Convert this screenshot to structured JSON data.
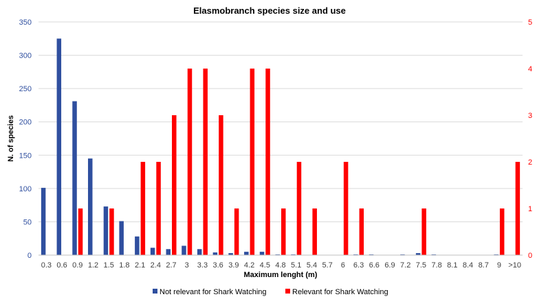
{
  "chart_data": {
    "type": "bar",
    "title": "Elasmobranch species size and use",
    "xlabel": "Maximum lenght (m)",
    "ylabel": "N. of species",
    "categories": [
      "0.3",
      "0.6",
      "0.9",
      "1.2",
      "1.5",
      "1.8",
      "2.1",
      "2.4",
      "2.7",
      "3",
      "3.3",
      "3.6",
      "3.9",
      "4.2",
      "4.5",
      "4.8",
      "5.1",
      "5.4",
      "5.7",
      "6",
      "6.3",
      "6.6",
      "6.9",
      "7.2",
      "7.5",
      "7.8",
      "8.1",
      "8.4",
      "8.7",
      "9",
      ">10"
    ],
    "ylim": [
      0,
      350
    ],
    "y_ticks": [
      0,
      50,
      100,
      150,
      200,
      250,
      300,
      350
    ],
    "y2lim": [
      0,
      5
    ],
    "y2_ticks": [
      0,
      1,
      2,
      3,
      4,
      5
    ],
    "grid": true,
    "legend_position": "bottom",
    "series": [
      {
        "name": "Not relevant for Shark Watching",
        "axis": "left",
        "color": "#2F4F9F",
        "values": [
          101,
          325,
          231,
          145,
          73,
          51,
          28,
          11,
          9,
          14,
          9,
          4,
          3,
          5,
          5,
          1,
          1,
          0,
          0,
          0,
          1,
          1,
          0,
          1,
          3,
          1,
          0,
          0,
          0,
          1,
          0
        ]
      },
      {
        "name": "Relevant for Shark Watching",
        "axis": "right",
        "color": "#FF0000",
        "values": [
          0,
          0,
          1,
          0,
          1,
          0,
          2,
          2,
          3,
          4,
          4,
          3,
          1,
          4,
          4,
          1,
          2,
          1,
          0,
          2,
          1,
          0,
          0,
          0,
          1,
          0,
          0,
          0,
          0,
          1,
          2
        ]
      }
    ]
  },
  "colors": {
    "left_axis": "#2F4F9F",
    "right_axis": "#FF0000",
    "grid": "#D9D9D9"
  }
}
